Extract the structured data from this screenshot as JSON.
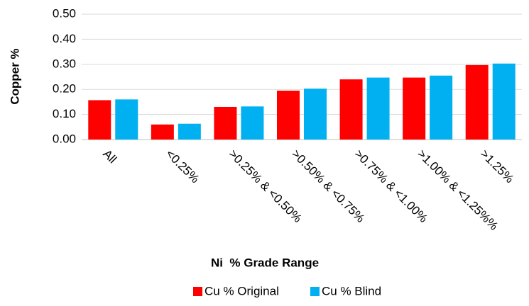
{
  "chart_data": {
    "type": "bar",
    "categories": [
      "All",
      "<0.25%",
      ">0.25% & <0.50%",
      ">0.50% & <0.75%",
      ">0.75% & <1.00%",
      ">1.00% & <1.25%%",
      ">1.25%"
    ],
    "series": [
      {
        "name": "Cu % Original",
        "color": "#ff0000",
        "values": [
          0.157,
          0.06,
          0.13,
          0.195,
          0.24,
          0.247,
          0.297
        ]
      },
      {
        "name": "Cu % Blind",
        "color": "#00b0f0",
        "values": [
          0.16,
          0.063,
          0.132,
          0.203,
          0.247,
          0.255,
          0.303
        ]
      }
    ],
    "ylim": [
      0,
      0.5
    ],
    "yticks": [
      {
        "value": 0,
        "label": "0.00"
      },
      {
        "value": 0.1,
        "label": "0.10"
      },
      {
        "value": 0.2,
        "label": "0.20"
      },
      {
        "value": 0.3,
        "label": "0.30"
      },
      {
        "value": 0.4,
        "label": "0.40"
      },
      {
        "value": 0.5,
        "label": "0.50"
      }
    ],
    "ylabel": "Copper %",
    "xlabel": "Ni  % Grade Range",
    "grid": true,
    "legend": "bottom"
  }
}
